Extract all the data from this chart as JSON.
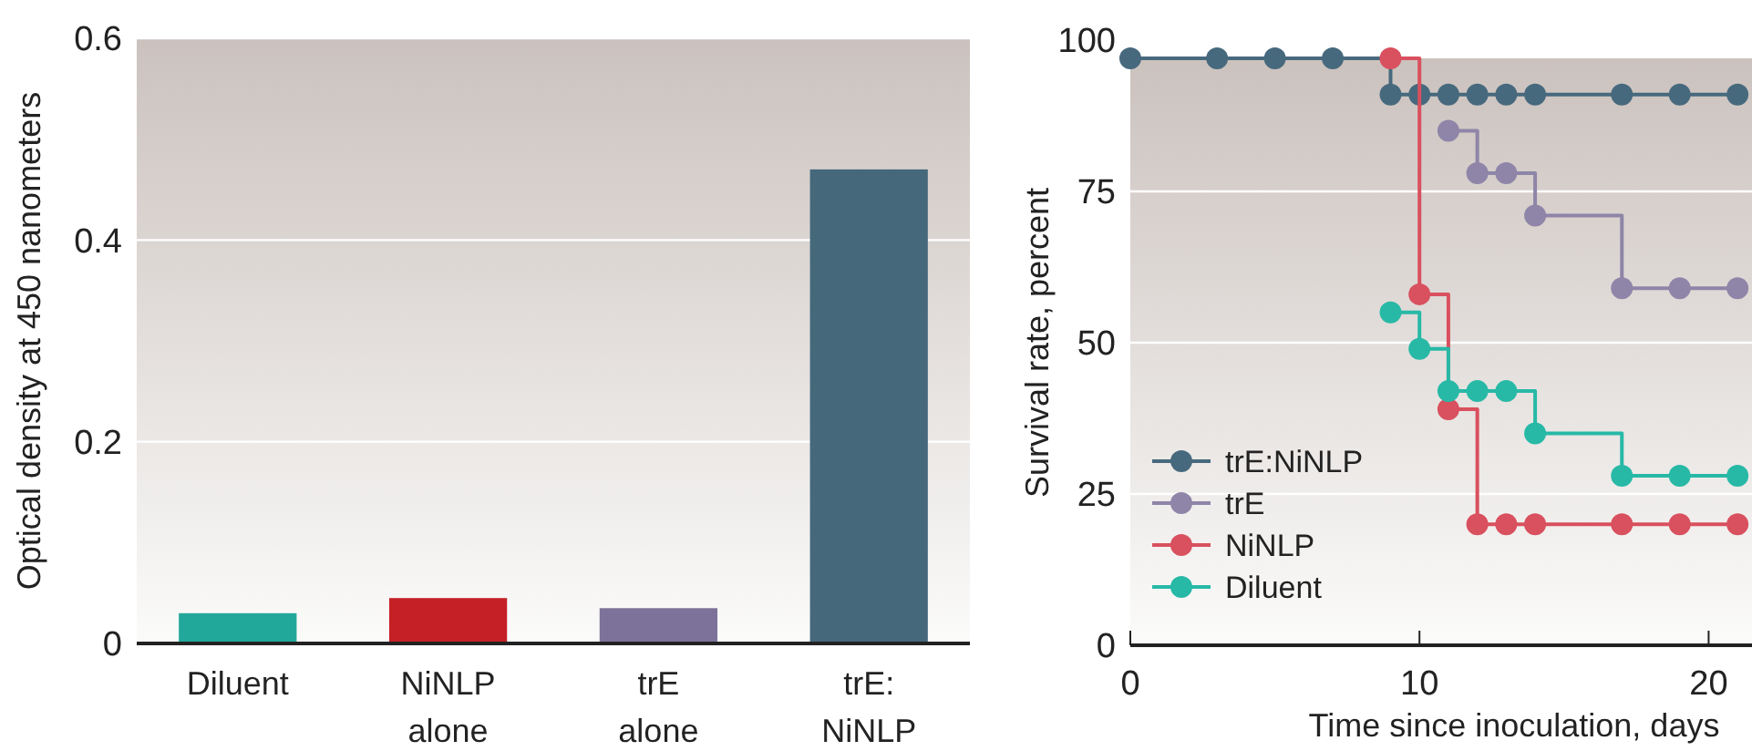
{
  "chart_data": [
    {
      "type": "bar",
      "ylabel": "Optical density at 450 nanometers",
      "categories": [
        "Diluent",
        "NiNLP\nalone",
        "trE\nalone",
        "trE:\nNiNLP"
      ],
      "values": [
        0.03,
        0.045,
        0.035,
        0.47
      ],
      "colors": [
        "#22a89a",
        "#c42026",
        "#7d7299",
        "#45687b"
      ],
      "ylim": [
        0,
        0.6
      ],
      "yticks": [
        0,
        0.2,
        0.4,
        0.6
      ],
      "grid": "y"
    },
    {
      "type": "step",
      "xlabel": "Time since inoculation, days",
      "ylabel": "Survival rate, percent",
      "xlim": [
        0,
        21.5
      ],
      "xticks": [
        0,
        10,
        20
      ],
      "ylim": [
        0,
        100
      ],
      "yticks": [
        0,
        25,
        50,
        75,
        100
      ],
      "grid": "y",
      "legend": "bottom left",
      "marker": "circle",
      "series": [
        {
          "name": "trE:NiNLP",
          "color": "#47697d",
          "x": [
            0,
            3,
            5,
            7,
            9,
            10,
            11,
            12,
            13,
            14,
            17,
            19,
            21
          ],
          "values": [
            97,
            97,
            97,
            97,
            91,
            91,
            91,
            91,
            91,
            91,
            91,
            91,
            91
          ]
        },
        {
          "name": "trE",
          "color": "#8e85a8",
          "x": [
            11,
            12,
            13,
            14,
            17,
            19,
            21
          ],
          "values": [
            85,
            78,
            78,
            71,
            59,
            59,
            59
          ]
        },
        {
          "name": "NiNLP",
          "color": "#d9505e",
          "x": [
            9,
            10,
            11,
            12,
            13,
            14,
            17,
            19,
            21
          ],
          "values": [
            97,
            58,
            39,
            20,
            20,
            20,
            20,
            20,
            20
          ]
        },
        {
          "name": "Diluent",
          "color": "#27b9a6",
          "x": [
            9,
            10,
            11,
            12,
            13,
            14,
            17,
            19,
            21
          ],
          "values": [
            55,
            49,
            42,
            42,
            42,
            35,
            28,
            28,
            28
          ]
        }
      ]
    }
  ]
}
